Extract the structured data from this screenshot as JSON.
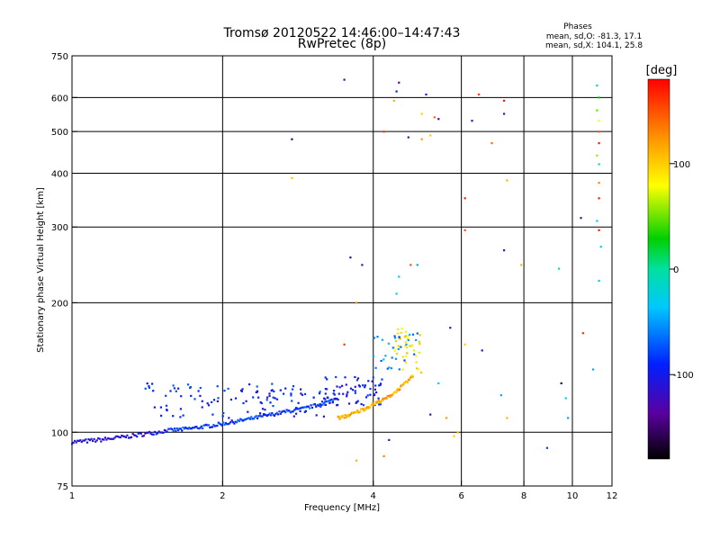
{
  "chart_data": {
    "type": "scatter",
    "title_line1": "Tromsø 20120522 14:46:00–14:47:43",
    "title_line2": "RwPretec (8p)",
    "xlabel": "Frequency [MHz]",
    "ylabel": "Stationary phase Virtual Height [km]",
    "x_scale": "log",
    "y_scale": "log",
    "xlim": [
      1,
      12
    ],
    "ylim": [
      75,
      750
    ],
    "x_ticks": [
      1,
      2,
      4,
      6,
      8,
      10,
      12
    ],
    "y_ticks": [
      75,
      100,
      200,
      300,
      400,
      500,
      600,
      750
    ],
    "x_gridlines": [
      2,
      4,
      6,
      8,
      10
    ],
    "y_gridlines": [
      100,
      200,
      300,
      400,
      500,
      600
    ],
    "grid": true,
    "colorbar": {
      "label": "[deg]",
      "range": [
        -180,
        180
      ],
      "ticks": [
        100,
        0,
        -100
      ]
    },
    "stats": {
      "heading": "Phases",
      "line_o": "mean, sd,O: -81.3, 17.1",
      "line_x": "mean, sd,X: 104.1, 25.8"
    },
    "segments": [
      {
        "name": "",
        "x_range": [
          1.0,
          1.55
        ],
        "y_range": [
          95,
          101
        ],
        "phase": -110,
        "n": 70
      },
      {
        "name": "",
        "x_range": [
          1.55,
          2.7
        ],
        "y_range": [
          101,
          112
        ],
        "phase": -85,
        "n": 100
      },
      {
        "name": "",
        "x_range": [
          2.7,
          3.4
        ],
        "y_range": [
          112,
          120
        ],
        "phase": -80,
        "n": 40
      },
      {
        "name": "",
        "x_range": [
          1.4,
          3.2
        ],
        "y_range": [
          108,
          130
        ],
        "phase": -90,
        "n": 110,
        "scatter": true
      },
      {
        "name": "",
        "x_range": [
          3.2,
          4.2
        ],
        "y_range": [
          115,
          135
        ],
        "phase": -95,
        "n": 70,
        "scatter": true
      },
      {
        "name": "",
        "x_range": [
          3.4,
          4.1
        ],
        "y_range": [
          108,
          118
        ],
        "phase": 110,
        "n": 45
      },
      {
        "name": "",
        "x_range": [
          4.1,
          4.8
        ],
        "y_range": [
          118,
          135
        ],
        "phase": 115,
        "n": 40
      },
      {
        "name": "",
        "x_range": [
          4.4,
          5.0
        ],
        "y_range": [
          135,
          175
        ],
        "phase": 90,
        "n": 40,
        "scatter": true
      },
      {
        "name": "",
        "x_range": [
          4.0,
          4.9
        ],
        "y_range": [
          140,
          170
        ],
        "phase": -60,
        "n": 30,
        "scatter": true
      }
    ],
    "points": [
      [
        3.5,
        660,
        -120
      ],
      [
        4.5,
        650,
        -140
      ],
      [
        4.45,
        620,
        -110
      ],
      [
        4.4,
        590,
        110
      ],
      [
        5.1,
        610,
        -120
      ],
      [
        5.4,
        535,
        -130
      ],
      [
        4.2,
        500,
        160
      ],
      [
        4.7,
        485,
        -120
      ],
      [
        5.0,
        480,
        120
      ],
      [
        5.2,
        490,
        100
      ],
      [
        5.0,
        550,
        100
      ],
      [
        5.3,
        540,
        140
      ],
      [
        6.3,
        530,
        -130
      ],
      [
        6.5,
        610,
        160
      ],
      [
        7.3,
        590,
        170
      ],
      [
        7.3,
        550,
        -110
      ],
      [
        6.9,
        470,
        140
      ],
      [
        7.4,
        385,
        110
      ],
      [
        6.1,
        350,
        170
      ],
      [
        6.1,
        295,
        150
      ],
      [
        7.3,
        265,
        -100
      ],
      [
        7.9,
        245,
        110
      ],
      [
        9.4,
        240,
        -10
      ],
      [
        10.4,
        315,
        -140
      ],
      [
        11.2,
        640,
        -20
      ],
      [
        11.3,
        600,
        30
      ],
      [
        11.2,
        560,
        50
      ],
      [
        11.3,
        530,
        80
      ],
      [
        11.3,
        500,
        150
      ],
      [
        11.3,
        470,
        170
      ],
      [
        11.2,
        440,
        60
      ],
      [
        11.3,
        420,
        0
      ],
      [
        11.3,
        380,
        130
      ],
      [
        11.3,
        350,
        170
      ],
      [
        11.2,
        310,
        -40
      ],
      [
        11.3,
        295,
        170
      ],
      [
        11.4,
        270,
        -30
      ],
      [
        11.3,
        225,
        -40
      ],
      [
        11.0,
        140,
        -50
      ],
      [
        10.5,
        170,
        160
      ],
      [
        9.5,
        130,
        -160
      ],
      [
        9.7,
        120,
        -40
      ],
      [
        9.8,
        108,
        -50
      ],
      [
        8.9,
        92,
        -80
      ],
      [
        7.4,
        108,
        110
      ],
      [
        7.2,
        122,
        -50
      ],
      [
        6.6,
        155,
        -130
      ],
      [
        6.1,
        160,
        100
      ],
      [
        5.7,
        175,
        -110
      ],
      [
        5.4,
        130,
        -30
      ],
      [
        5.2,
        110,
        -130
      ],
      [
        5.6,
        108,
        120
      ],
      [
        5.8,
        98,
        100
      ],
      [
        5.9,
        100,
        110
      ],
      [
        4.2,
        88,
        130
      ],
      [
        4.3,
        96,
        -120
      ],
      [
        3.7,
        86,
        110
      ],
      [
        3.7,
        200,
        120
      ],
      [
        3.8,
        245,
        -120
      ],
      [
        3.6,
        255,
        -130
      ],
      [
        4.5,
        230,
        -40
      ],
      [
        4.45,
        210,
        -40
      ],
      [
        4.75,
        245,
        150
      ],
      [
        4.9,
        245,
        -50
      ],
      [
        3.5,
        160,
        160
      ],
      [
        2.75,
        480,
        -150
      ],
      [
        2.75,
        390,
        100
      ]
    ]
  }
}
